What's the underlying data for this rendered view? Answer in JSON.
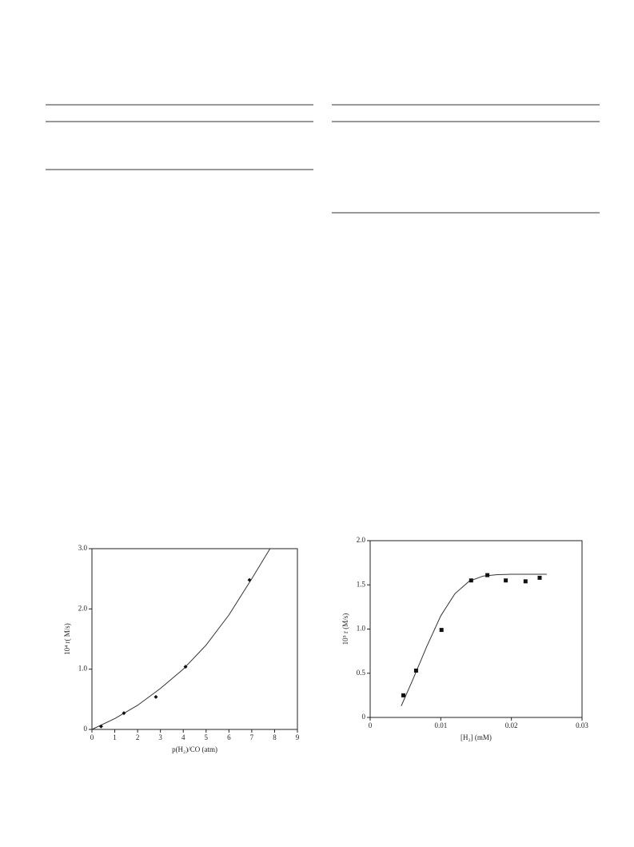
{
  "chart_data": [
    {
      "type": "scatter",
      "marker": "diamond",
      "color": "#111",
      "x_label": "p(H₂)/CO (atm)",
      "y_label": "10⁴ r( M/s)",
      "x": [
        0.4,
        1.4,
        2.8,
        4.1,
        6.9
      ],
      "values": [
        0.05,
        0.27,
        0.54,
        1.04,
        2.48
      ],
      "fit_x": [
        0,
        1,
        2,
        3,
        4,
        5,
        6,
        7,
        7.8
      ],
      "fit_values": [
        0,
        0.18,
        0.4,
        0.68,
        1.0,
        1.4,
        1.9,
        2.5,
        3.0
      ],
      "xlim": [
        0,
        9
      ],
      "xticks": [
        0,
        1,
        2,
        3,
        4,
        5,
        6,
        7,
        8,
        9
      ],
      "ylim": [
        0,
        3
      ],
      "yticks": [
        0,
        {
          "value": 1,
          "label": "1.0"
        },
        {
          "value": 2,
          "label": "2.0"
        },
        {
          "value": 3,
          "label": "3.0"
        }
      ]
    },
    {
      "type": "scatter",
      "marker": "square",
      "color": "#111",
      "x_label": "[H₂] (mM)",
      "y_label": "10⁵ r (M/s)",
      "x": [
        0.0047,
        0.0065,
        0.0101,
        0.0143,
        0.0166,
        0.0192,
        0.022,
        0.024
      ],
      "values": [
        0.25,
        0.53,
        0.99,
        1.55,
        1.61,
        1.55,
        1.54,
        1.58
      ],
      "fit_x": [
        0.0044,
        0.006,
        0.008,
        0.01,
        0.012,
        0.014,
        0.016,
        0.018,
        0.02,
        0.025
      ],
      "fit_values": [
        0.13,
        0.42,
        0.8,
        1.15,
        1.4,
        1.54,
        1.6,
        1.615,
        1.62,
        1.62
      ],
      "xlim": [
        0,
        0.03
      ],
      "xticks": [
        0,
        0.01,
        0.02,
        0.03
      ],
      "ylim": [
        0,
        2
      ],
      "yticks": [
        0,
        0.5,
        {
          "value": 1,
          "label": "1.0"
        },
        1.5,
        {
          "value": 2,
          "label": "2.0"
        }
      ]
    }
  ]
}
